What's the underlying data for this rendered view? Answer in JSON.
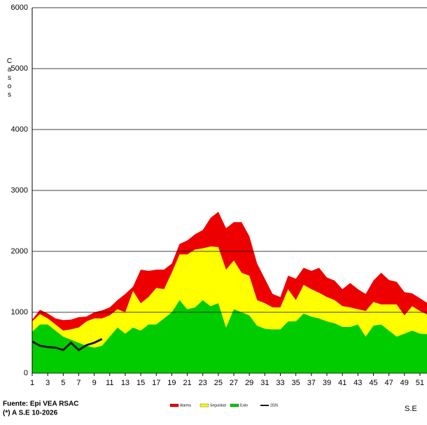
{
  "chart_data": {
    "type": "area",
    "stacked": true,
    "y_label": "Casos",
    "x_label": "S.E",
    "source": "Fuente: Epi VEA RSAC",
    "note": "(*) A S.E 10-2026",
    "x": [
      1,
      2,
      3,
      4,
      5,
      6,
      7,
      8,
      9,
      10,
      11,
      12,
      13,
      14,
      15,
      16,
      17,
      18,
      19,
      20,
      21,
      22,
      23,
      24,
      25,
      26,
      27,
      28,
      29,
      30,
      31,
      32,
      33,
      34,
      35,
      36,
      37,
      38,
      39,
      40,
      41,
      42,
      43,
      44,
      45,
      46,
      47,
      48,
      49,
      50,
      51,
      52
    ],
    "xlim": [
      1,
      52
    ],
    "xticks": [
      1,
      3,
      5,
      7,
      9,
      11,
      13,
      15,
      17,
      19,
      21,
      23,
      25,
      27,
      29,
      31,
      33,
      35,
      37,
      39,
      41,
      43,
      45,
      47,
      49,
      51
    ],
    "ylim": [
      0,
      6000
    ],
    "yticks": [
      0,
      1000,
      2000,
      3000,
      4000,
      5000,
      6000
    ],
    "grid": true,
    "series": [
      {
        "name": "Exito",
        "color": "#00cc00",
        "values": [
          680,
          800,
          800,
          700,
          600,
          550,
          500,
          450,
          420,
          450,
          600,
          750,
          650,
          750,
          700,
          800,
          800,
          900,
          1000,
          1200,
          1050,
          1080,
          1200,
          1100,
          1150,
          750,
          1050,
          1000,
          950,
          780,
          730,
          720,
          720,
          850,
          850,
          980,
          930,
          900,
          850,
          820,
          760,
          760,
          800,
          600,
          780,
          800,
          700,
          600,
          650,
          700,
          650,
          640
        ]
      },
      {
        "name": "Seguridad",
        "color": "#ffff00",
        "values": [
          170,
          170,
          100,
          100,
          100,
          170,
          250,
          400,
          480,
          450,
          350,
          300,
          350,
          600,
          450,
          450,
          600,
          480,
          650,
          750,
          900,
          950,
          850,
          980,
          920,
          950,
          800,
          650,
          650,
          420,
          420,
          360,
          360,
          530,
          350,
          470,
          450,
          420,
          400,
          380,
          340,
          320,
          250,
          420,
          390,
          330,
          430,
          530,
          300,
          400,
          370,
          320
        ]
      },
      {
        "name": "Alarma",
        "color": "#ee0000",
        "values": [
          30,
          70,
          80,
          100,
          170,
          160,
          170,
          80,
          100,
          130,
          130,
          150,
          300,
          70,
          550,
          430,
          300,
          320,
          150,
          170,
          230,
          250,
          300,
          470,
          580,
          680,
          630,
          830,
          650,
          600,
          400,
          220,
          170,
          220,
          350,
          280,
          300,
          410,
          320,
          320,
          280,
          400,
          330,
          280,
          350,
          520,
          400,
          370,
          380,
          210,
          210,
          190
        ]
      },
      {
        "name": "2026",
        "color": "#1a1a1a",
        "style": "line",
        "values": [
          520,
          450,
          430,
          420,
          380,
          500,
          380,
          460,
          500,
          560,
          null,
          null,
          null,
          null,
          null,
          null,
          null,
          null,
          null,
          null,
          null,
          null,
          null,
          null,
          null,
          null,
          null,
          null,
          null,
          null,
          null,
          null,
          null,
          null,
          null,
          null,
          null,
          null,
          null,
          null,
          null,
          null,
          null,
          null,
          null,
          null,
          null,
          null,
          null,
          null,
          null,
          null
        ]
      }
    ]
  }
}
